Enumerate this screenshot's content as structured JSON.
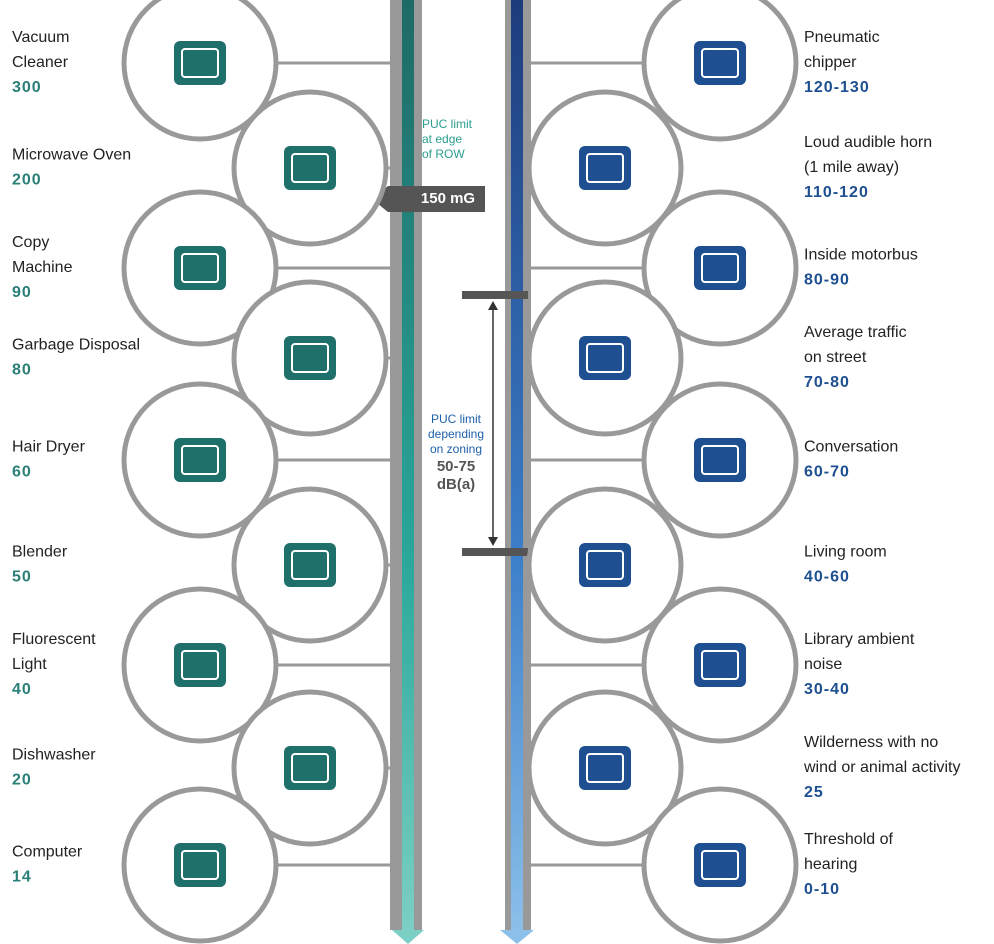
{
  "left": {
    "items": [
      {
        "lines": [
          "Vacuum",
          "Cleaner"
        ],
        "value": "300"
      },
      {
        "lines": [
          "Microwave Oven"
        ],
        "value": "200"
      },
      {
        "lines": [
          "Copy",
          "Machine"
        ],
        "value": "90"
      },
      {
        "lines": [
          "Garbage Disposal"
        ],
        "value": "80"
      },
      {
        "lines": [
          "Hair Dryer"
        ],
        "value": "60"
      },
      {
        "lines": [
          "Blender"
        ],
        "value": "50"
      },
      {
        "lines": [
          "Fluorescent",
          "Light"
        ],
        "value": "40"
      },
      {
        "lines": [
          "Dishwasher"
        ],
        "value": "20"
      },
      {
        "lines": [
          "Computer"
        ],
        "value": "14"
      }
    ],
    "annotation": {
      "lines": [
        "PUC limit",
        "at edge",
        "of ROW"
      ],
      "callout": "150 mG"
    }
  },
  "right": {
    "items": [
      {
        "lines": [
          "Pneumatic",
          "chipper"
        ],
        "value": "120-130"
      },
      {
        "lines": [
          "Loud audible horn",
          "(1 mile away)"
        ],
        "value": "110-120"
      },
      {
        "lines": [
          "Inside motorbus"
        ],
        "value": "80-90"
      },
      {
        "lines": [
          "Average traffic",
          "on street"
        ],
        "value": "70-80"
      },
      {
        "lines": [
          "Conversation"
        ],
        "value": "60-70"
      },
      {
        "lines": [
          "Living room"
        ],
        "value": "40-60"
      },
      {
        "lines": [
          "Library ambient",
          "noise"
        ],
        "value": "30-40"
      },
      {
        "lines": [
          "Wilderness with no",
          "wind or animal activity"
        ],
        "value": "25"
      },
      {
        "lines": [
          "Threshold of",
          "hearing"
        ],
        "value": "0-10"
      }
    ],
    "annotation": {
      "lines": [
        "PUC limit",
        "depending",
        "on zoning"
      ],
      "range": [
        "50-75",
        "dB(a)"
      ]
    }
  }
}
